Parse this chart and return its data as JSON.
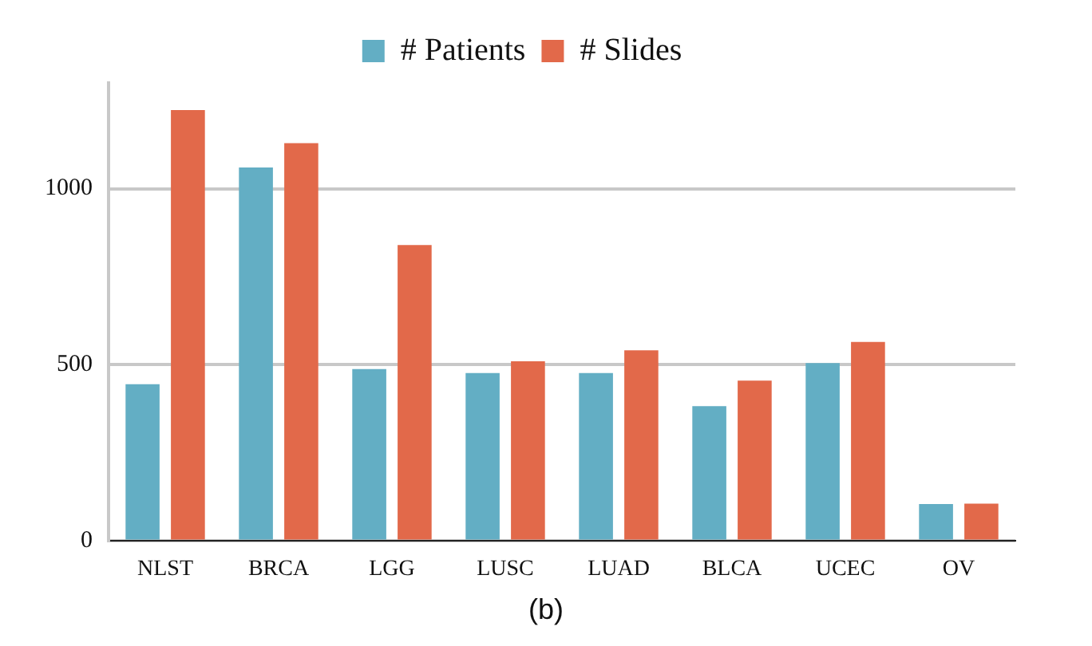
{
  "chart_data": {
    "type": "bar",
    "categories": [
      "NLST",
      "BRCA",
      "LGG",
      "LUSC",
      "LUAD",
      "BLCA",
      "UCEC",
      "OV"
    ],
    "series": [
      {
        "name": "# Patients",
        "color": "#63aec4",
        "values": [
          445,
          1060,
          488,
          477,
          477,
          383,
          505,
          105
        ]
      },
      {
        "name": "# Slides",
        "color": "#e2694a",
        "values": [
          1223,
          1129,
          840,
          510,
          541,
          455,
          565,
          106
        ]
      }
    ],
    "ylim": [
      0,
      1300
    ],
    "yticks": [
      0,
      500,
      1000
    ],
    "grid": "y",
    "legend": "top",
    "annotations": [
      "(b)"
    ]
  }
}
